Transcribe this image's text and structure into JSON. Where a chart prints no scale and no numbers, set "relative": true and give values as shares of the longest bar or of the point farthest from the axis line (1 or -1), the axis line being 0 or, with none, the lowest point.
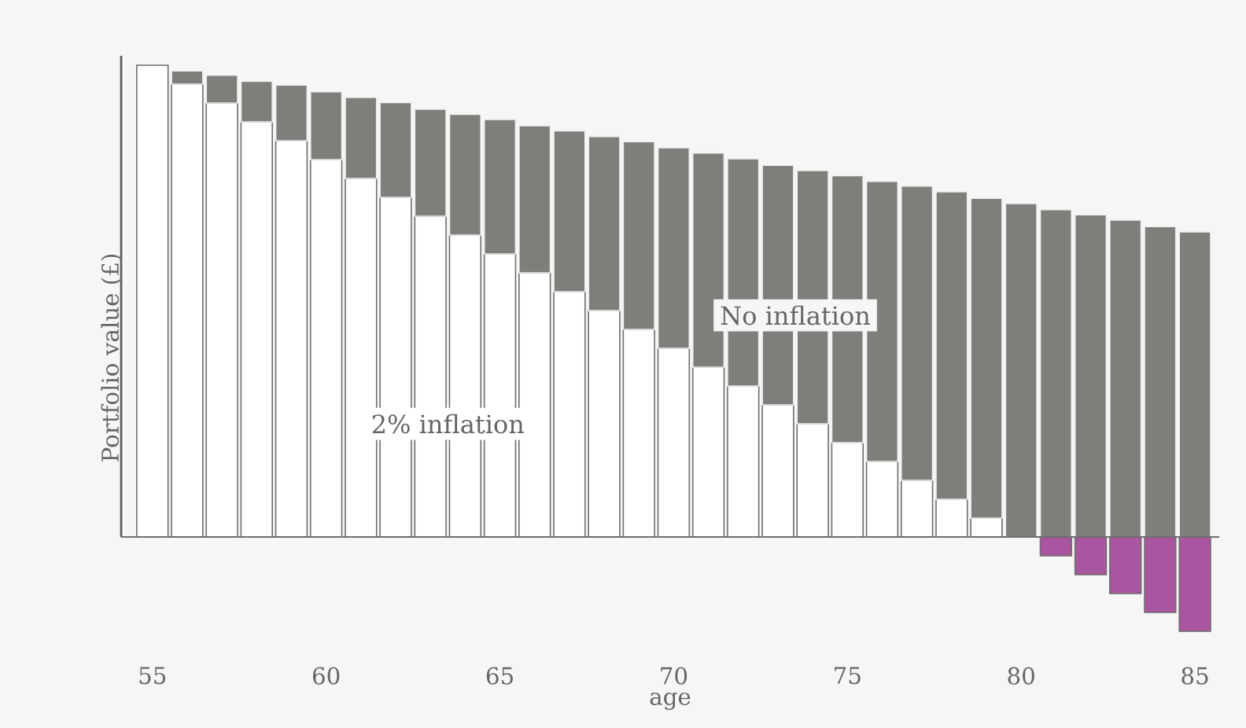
{
  "chart_data": {
    "type": "bar",
    "relative": true,
    "xlabel": "age",
    "ylabel": "Portfolio value (£)",
    "x": [
      55,
      56,
      57,
      58,
      59,
      60,
      61,
      62,
      63,
      64,
      65,
      66,
      67,
      68,
      69,
      70,
      71,
      72,
      73,
      74,
      75,
      76,
      77,
      78,
      79,
      80,
      81,
      82,
      83,
      84,
      85
    ],
    "stacked": true,
    "xlim": [
      54.1,
      85.7
    ],
    "xticks": [
      55,
      60,
      65,
      70,
      75,
      80,
      85
    ],
    "grid": false,
    "legend": false,
    "series": [
      {
        "name": "2% inflation",
        "colors": [
          "#ffffff",
          "#ffffff",
          "#ffffff",
          "#ffffff",
          "#ffffff",
          "#ffffff",
          "#ffffff",
          "#ffffff",
          "#ffffff",
          "#ffffff",
          "#ffffff",
          "#ffffff",
          "#ffffff",
          "#ffffff",
          "#ffffff",
          "#ffffff",
          "#ffffff",
          "#ffffff",
          "#ffffff",
          "#ffffff",
          "#ffffff",
          "#ffffff",
          "#ffffff",
          "#ffffff",
          "#ffffff",
          "#ffffff",
          "#a9559f",
          "#a9559f",
          "#a9559f",
          "#a9559f",
          "#a9559f"
        ],
        "values": [
          1.0,
          0.96,
          0.92,
          0.88,
          0.84,
          0.8,
          0.76,
          0.72,
          0.68,
          0.64,
          0.6,
          0.56,
          0.52,
          0.48,
          0.44,
          0.4,
          0.36,
          0.32,
          0.28,
          0.24,
          0.2,
          0.16,
          0.12,
          0.08,
          0.04,
          0,
          -0.04,
          -0.08,
          -0.12,
          -0.16,
          -0.2
        ]
      },
      {
        "name": "No inflation",
        "color": "#7e7e7b",
        "values": [
          null,
          0.028,
          0.059,
          0.086,
          0.118,
          0.144,
          0.172,
          0.201,
          0.227,
          0.256,
          0.285,
          0.312,
          0.341,
          0.369,
          0.398,
          0.425,
          0.454,
          0.482,
          0.508,
          0.537,
          0.566,
          0.594,
          0.624,
          0.652,
          0.678,
          0.707,
          0.694,
          0.683,
          0.672,
          0.658,
          0.647
        ]
      }
    ]
  }
}
